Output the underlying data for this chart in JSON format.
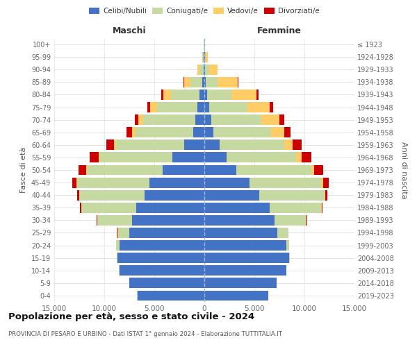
{
  "age_groups": [
    "0-4",
    "5-9",
    "10-14",
    "15-19",
    "20-24",
    "25-29",
    "30-34",
    "35-39",
    "40-44",
    "45-49",
    "50-54",
    "55-59",
    "60-64",
    "65-69",
    "70-74",
    "75-79",
    "80-84",
    "85-89",
    "90-94",
    "95-99",
    "100+"
  ],
  "birth_years": [
    "2019-2023",
    "2014-2018",
    "2009-2013",
    "2004-2008",
    "1999-2003",
    "1994-1998",
    "1989-1993",
    "1984-1988",
    "1979-1983",
    "1974-1978",
    "1969-1973",
    "1964-1968",
    "1959-1963",
    "1954-1958",
    "1949-1953",
    "1944-1948",
    "1939-1943",
    "1934-1938",
    "1929-1933",
    "1924-1928",
    "≤ 1923"
  ],
  "colors": {
    "celibi": "#4472C4",
    "coniugati": "#C5D9A0",
    "vedovi": "#FFCC66",
    "divorziati": "#CC0000"
  },
  "maschi": {
    "celibi": [
      6700,
      7500,
      8500,
      8700,
      8500,
      7500,
      7200,
      6800,
      6000,
      5500,
      4200,
      3200,
      2000,
      1100,
      900,
      700,
      500,
      200,
      100,
      50,
      20
    ],
    "coniugati": [
      5,
      5,
      10,
      50,
      300,
      1200,
      3500,
      5500,
      6500,
      7200,
      7500,
      7200,
      6800,
      5800,
      5200,
      4000,
      2800,
      1200,
      400,
      80,
      20
    ],
    "vedovi": [
      0,
      0,
      0,
      0,
      5,
      5,
      5,
      10,
      30,
      70,
      100,
      150,
      200,
      350,
      500,
      700,
      800,
      600,
      200,
      50,
      10
    ],
    "divorziati": [
      0,
      0,
      0,
      5,
      20,
      30,
      50,
      100,
      200,
      400,
      800,
      900,
      800,
      500,
      350,
      300,
      200,
      80,
      20,
      10,
      5
    ]
  },
  "femmine": {
    "nubili": [
      6400,
      7200,
      8200,
      8500,
      8200,
      7300,
      7000,
      6500,
      5500,
      4500,
      3200,
      2200,
      1500,
      900,
      700,
      500,
      300,
      150,
      100,
      50,
      20
    ],
    "coniugate": [
      5,
      5,
      5,
      40,
      250,
      1100,
      3200,
      5200,
      6500,
      7200,
      7500,
      7000,
      6500,
      5800,
      5000,
      3800,
      2400,
      1200,
      400,
      100,
      20
    ],
    "vedove": [
      0,
      0,
      0,
      0,
      5,
      5,
      10,
      20,
      60,
      150,
      300,
      500,
      800,
      1300,
      1800,
      2200,
      2500,
      2000,
      800,
      200,
      20
    ],
    "divorziate": [
      0,
      0,
      0,
      5,
      20,
      30,
      50,
      100,
      200,
      600,
      900,
      1000,
      900,
      600,
      500,
      350,
      200,
      80,
      20,
      10,
      5
    ]
  },
  "xlim": 15000,
  "title": "Popolazione per età, sesso e stato civile - 2024",
  "subtitle": "PROVINCIA DI PESARO E URBINO - Dati ISTAT 1° gennaio 2024 - Elaborazione TUTTITALIA.IT",
  "xlabel_maschi": "Maschi",
  "xlabel_femmine": "Femmine",
  "ylabel": "Fasce di età",
  "ylabel_right": "Anni di nascita",
  "xticks": [
    -15000,
    -10000,
    -5000,
    0,
    5000,
    10000,
    15000
  ],
  "xticklabels": [
    "15.000",
    "10.000",
    "5.000",
    "0",
    "5.000",
    "10.000",
    "15.000"
  ],
  "bg_color": "#FFFFFF",
  "grid_color": "#CCCCCC"
}
